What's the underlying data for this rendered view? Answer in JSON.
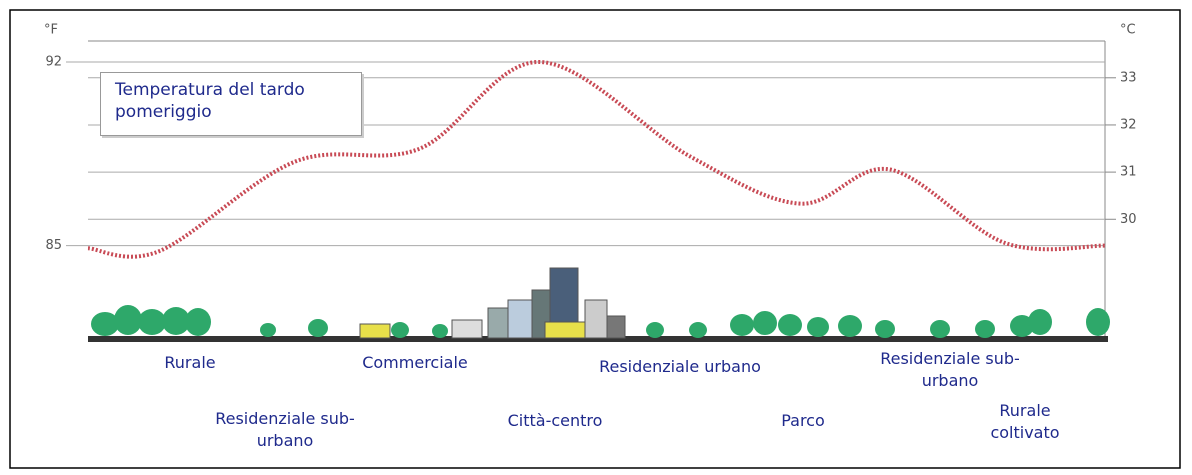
{
  "chart_data": {
    "type": "line",
    "annotation": "Temperatura del tardo pomeriggio",
    "y_unit": "°F",
    "y2_unit": "°C",
    "categories": [
      null,
      "Rurale",
      "Residenziale sub-urbano",
      "Commerciale",
      "Città-centro",
      "Residenziale urbano",
      "Parco",
      "Residenziale sub-urbano",
      "Rurale coltivato",
      null
    ],
    "series": [
      {
        "color": "#c84a55",
        "values": [
          84.9,
          84.8,
          88.2,
          88.7,
          92.0,
          88.4,
          86.6,
          87.9,
          85.1,
          85.0
        ]
      }
    ],
    "ylim": [
      81.4,
      92.8
    ],
    "yticks": [
      85,
      92
    ],
    "y2lim": [
      27.44,
      33.78
    ],
    "y2ticks": [
      30,
      31,
      32,
      33
    ],
    "grid": true
  }
}
